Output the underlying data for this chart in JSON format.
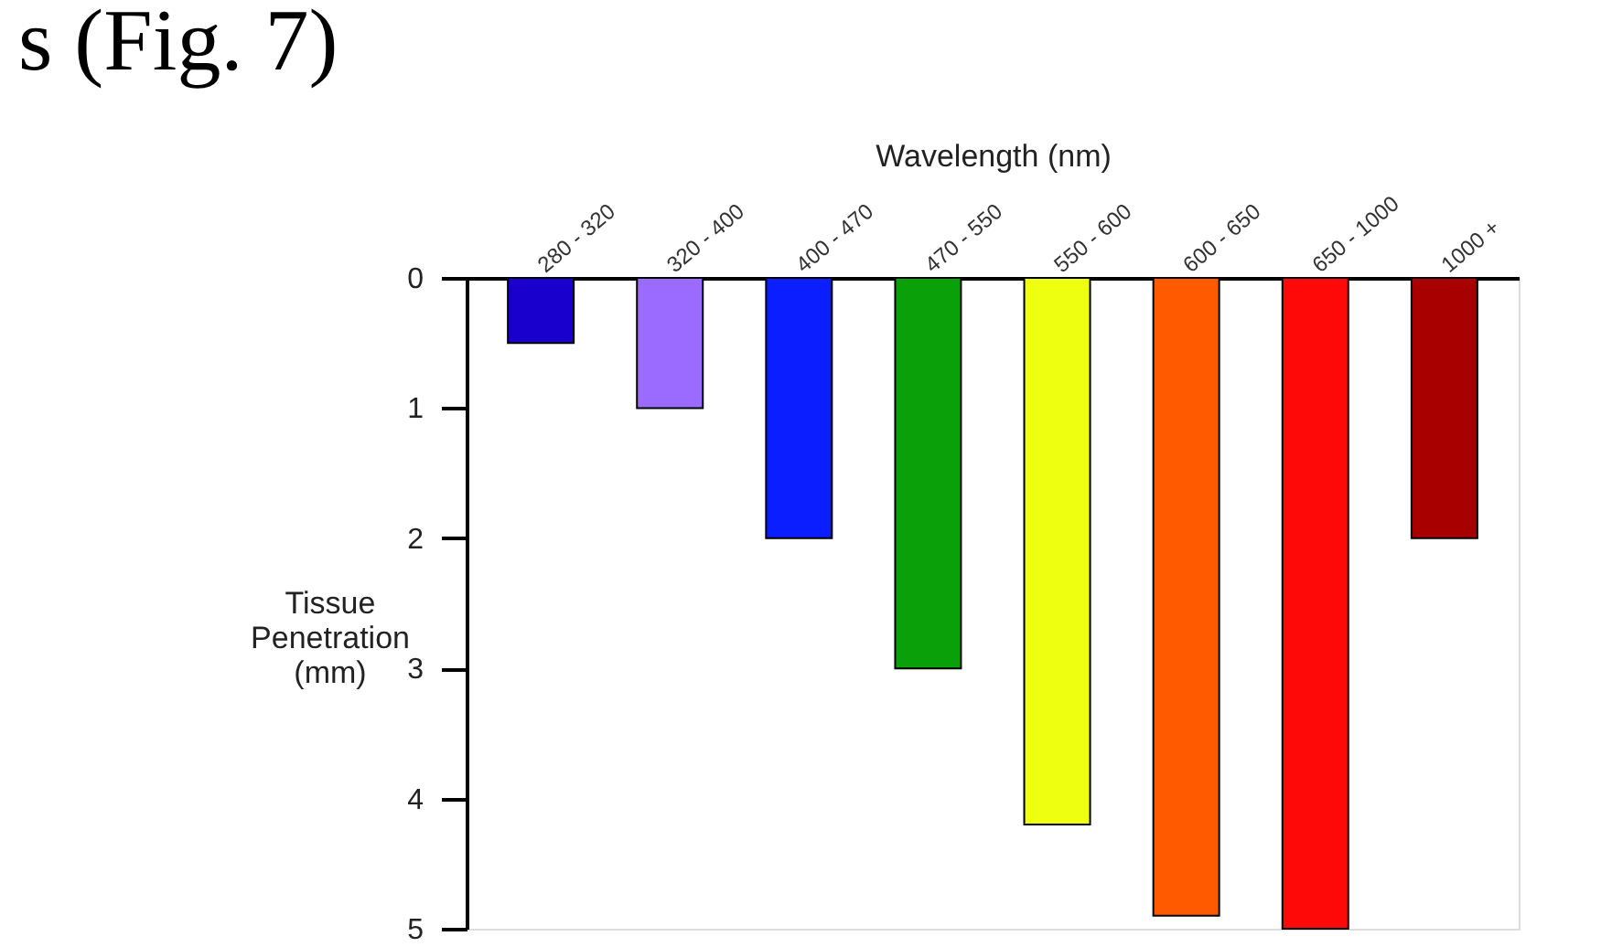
{
  "chart_data": {
    "type": "bar",
    "xlabel": "Wavelength (nm)",
    "ylabel": "Tissue Penetration (mm)",
    "categories": [
      "280 - 320",
      "320 - 400",
      "400 - 470",
      "470 - 550",
      "550 - 600",
      "600 - 650",
      "650 - 1000",
      "1000 +"
    ],
    "values": [
      0.5,
      1,
      2,
      3,
      4.2,
      4.9,
      5,
      2
    ],
    "colors": [
      "#1a00cc",
      "#9b6bff",
      "#0a1eff",
      "#0aa00a",
      "#eeff10",
      "#ff5a00",
      "#ff0808",
      "#a80000"
    ],
    "ylim": [
      5,
      0
    ],
    "yticks": [
      0,
      1,
      2,
      3,
      4,
      5
    ],
    "grid": false,
    "annotations": [
      "s (Fig. 7)"
    ]
  }
}
